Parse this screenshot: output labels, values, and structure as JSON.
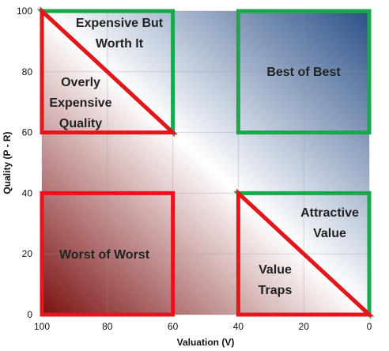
{
  "chart_data": {
    "type": "quadrant",
    "xlabel": "Valuation (V)",
    "ylabel": "Quality (P - R)",
    "xlim": [
      100,
      0
    ],
    "ylim": [
      0,
      100
    ],
    "x_reversed": true,
    "x_ticks": [
      "100",
      "80",
      "60",
      "40",
      "20",
      "0"
    ],
    "y_ticks": [
      "0",
      "20",
      "40",
      "60",
      "80",
      "100"
    ],
    "grid": true,
    "colors": {
      "red_zone": "#e8141b",
      "green_zone": "#1aa84c",
      "gradient_low": "#7a1010",
      "gradient_mid": "#ffffff",
      "gradient_high": "#2a4f87"
    },
    "zones": [
      {
        "label_lines": [
          "Expensive But",
          "Worth It"
        ],
        "color": "green",
        "shape": "triangle",
        "vertices": [
          [
            100,
            100
          ],
          [
            60,
            100
          ],
          [
            60,
            60
          ]
        ]
      },
      {
        "label_lines": [
          "Overly",
          "Expensive",
          "Quality"
        ],
        "color": "red",
        "shape": "triangle",
        "vertices": [
          [
            100,
            100
          ],
          [
            100,
            60
          ],
          [
            60,
            60
          ]
        ]
      },
      {
        "label_lines": [
          "Best of Best"
        ],
        "color": "green",
        "shape": "rect",
        "vertices": [
          [
            40,
            100
          ],
          [
            0,
            100
          ],
          [
            0,
            60
          ],
          [
            40,
            60
          ]
        ]
      },
      {
        "label_lines": [
          "Worst of Worst"
        ],
        "color": "red",
        "shape": "rect",
        "vertices": [
          [
            100,
            40
          ],
          [
            60,
            40
          ],
          [
            60,
            0
          ],
          [
            100,
            0
          ]
        ]
      },
      {
        "label_lines": [
          "Attractive",
          "Value"
        ],
        "color": "green",
        "shape": "triangle",
        "vertices": [
          [
            40,
            40
          ],
          [
            0,
            40
          ],
          [
            0,
            0
          ]
        ]
      },
      {
        "label_lines": [
          "Value",
          "Traps"
        ],
        "color": "red",
        "shape": "triangle",
        "vertices": [
          [
            40,
            40
          ],
          [
            40,
            0
          ],
          [
            0,
            0
          ]
        ]
      }
    ]
  }
}
